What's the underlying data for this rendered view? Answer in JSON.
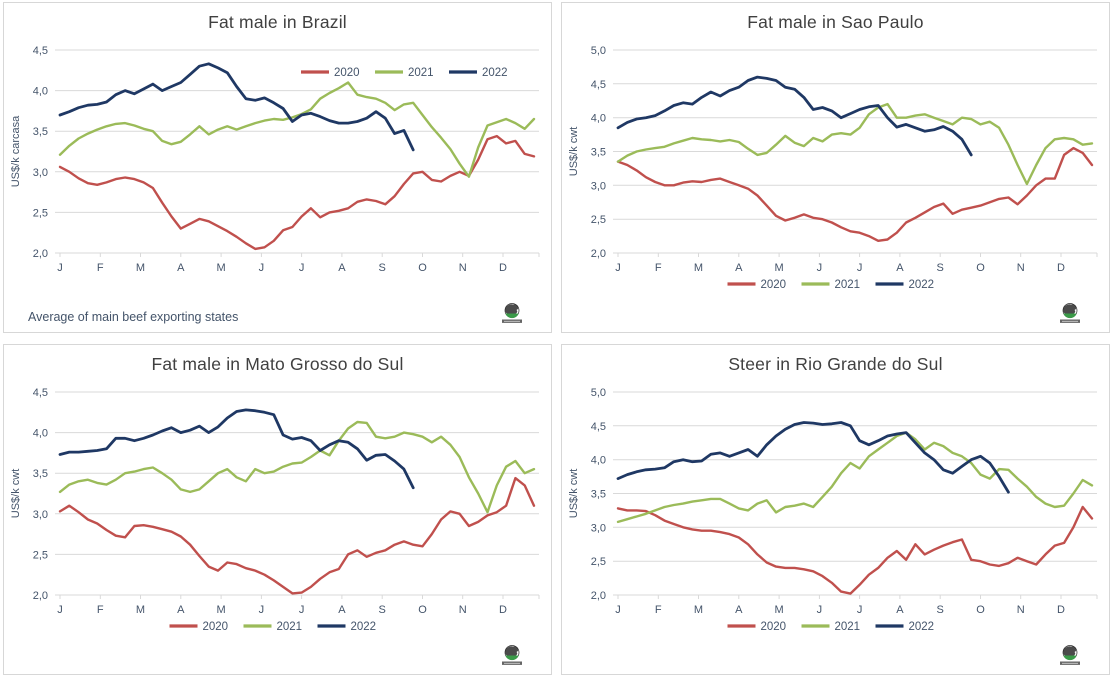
{
  "colors": {
    "red": "#c0504d",
    "green": "#9bbb59",
    "navy": "#1f3864",
    "grid": "#d9d9d9",
    "axis_text": "#44546a",
    "title_text": "#404040",
    "panel_border": "#d7d7d7",
    "logo_green": "#3a9a48",
    "logo_dark": "#2b2b2b",
    "logo_banner": "#666666"
  },
  "chart_data": [
    {
      "type": "line",
      "title": "Fat male in Brazil",
      "ylabel": "US$/k carcasa",
      "ylim": [
        2.0,
        4.5
      ],
      "ytick_labels": [
        "4,5",
        "4,0",
        "3,5",
        "3,0",
        "2,5",
        "2,0"
      ],
      "x_months": [
        "J",
        "F",
        "M",
        "A",
        "M",
        "J",
        "J",
        "A",
        "S",
        "O",
        "N",
        "D"
      ],
      "grid": true,
      "legend_position": "inside-top-right",
      "footnote": "Average  of main beef exporting states",
      "series": [
        {
          "name": "2020",
          "color": "#c0504d",
          "values": [
            3.06,
            3.0,
            2.92,
            2.86,
            2.84,
            2.87,
            2.91,
            2.93,
            2.91,
            2.87,
            2.8,
            2.62,
            2.45,
            2.3,
            2.36,
            2.42,
            2.39,
            2.33,
            2.27,
            2.2,
            2.12,
            2.05,
            2.07,
            2.15,
            2.28,
            2.32,
            2.45,
            2.55,
            2.44,
            2.5,
            2.52,
            2.55,
            2.63,
            2.66,
            2.64,
            2.6,
            2.7,
            2.85,
            2.98,
            3.0,
            2.9,
            2.88,
            2.95,
            3.0,
            2.95,
            3.15,
            3.4,
            3.44,
            3.35,
            3.38,
            3.22,
            3.19
          ]
        },
        {
          "name": "2021",
          "color": "#9bbb59",
          "values": [
            3.21,
            3.32,
            3.41,
            3.47,
            3.52,
            3.56,
            3.59,
            3.6,
            3.57,
            3.53,
            3.5,
            3.38,
            3.34,
            3.37,
            3.46,
            3.56,
            3.46,
            3.52,
            3.56,
            3.52,
            3.56,
            3.6,
            3.63,
            3.65,
            3.64,
            3.67,
            3.71,
            3.77,
            3.9,
            3.97,
            4.03,
            4.1,
            3.95,
            3.92,
            3.9,
            3.85,
            3.76,
            3.83,
            3.85,
            3.7,
            3.55,
            3.42,
            3.28,
            3.1,
            2.94,
            3.3,
            3.57,
            3.61,
            3.65,
            3.6,
            3.53,
            3.65
          ]
        },
        {
          "name": "2022",
          "color": "#1f3864",
          "values": [
            3.7,
            3.74,
            3.79,
            3.82,
            3.83,
            3.86,
            3.95,
            4.0,
            3.96,
            4.02,
            4.08,
            4.0,
            4.05,
            4.1,
            4.2,
            4.3,
            4.33,
            4.28,
            4.22,
            4.05,
            3.9,
            3.88,
            3.91,
            3.85,
            3.78,
            3.62,
            3.7,
            3.72,
            3.68,
            3.63,
            3.6,
            3.6,
            3.62,
            3.66,
            3.74,
            3.66,
            3.47,
            3.51,
            3.27
          ]
        }
      ]
    },
    {
      "type": "line",
      "title": "Fat male in Sao Paulo",
      "ylabel": "US$/k cwt",
      "ylim": [
        2.0,
        5.0
      ],
      "ytick_labels": [
        "5,0",
        "4,5",
        "4,0",
        "3,5",
        "3,0",
        "2,5",
        "2,0"
      ],
      "x_months": [
        "J",
        "F",
        "M",
        "A",
        "M",
        "J",
        "J",
        "A",
        "S",
        "O",
        "N",
        "D"
      ],
      "grid": true,
      "legend_position": "bottom",
      "footnote": "",
      "series": [
        {
          "name": "2020",
          "color": "#c0504d",
          "values": [
            3.35,
            3.3,
            3.22,
            3.12,
            3.05,
            3.0,
            3.0,
            3.04,
            3.06,
            3.05,
            3.08,
            3.1,
            3.05,
            3.0,
            2.95,
            2.85,
            2.7,
            2.55,
            2.48,
            2.52,
            2.57,
            2.52,
            2.5,
            2.45,
            2.38,
            2.32,
            2.3,
            2.25,
            2.18,
            2.2,
            2.3,
            2.45,
            2.52,
            2.6,
            2.68,
            2.73,
            2.58,
            2.64,
            2.67,
            2.7,
            2.75,
            2.8,
            2.82,
            2.72,
            2.85,
            3.0,
            3.1,
            3.1,
            3.45,
            3.55,
            3.48,
            3.3
          ]
        },
        {
          "name": "2021",
          "color": "#9bbb59",
          "values": [
            3.35,
            3.44,
            3.5,
            3.53,
            3.55,
            3.57,
            3.62,
            3.66,
            3.7,
            3.68,
            3.67,
            3.65,
            3.67,
            3.64,
            3.54,
            3.45,
            3.48,
            3.6,
            3.73,
            3.63,
            3.58,
            3.7,
            3.65,
            3.75,
            3.77,
            3.75,
            3.85,
            4.05,
            4.15,
            4.2,
            4.0,
            4.0,
            4.03,
            4.05,
            4.0,
            3.95,
            3.9,
            4.0,
            3.98,
            3.9,
            3.94,
            3.85,
            3.6,
            3.3,
            3.02,
            3.3,
            3.55,
            3.68,
            3.7,
            3.68,
            3.6,
            3.62
          ]
        },
        {
          "name": "2022",
          "color": "#1f3864",
          "values": [
            3.85,
            3.93,
            3.98,
            4.0,
            4.03,
            4.1,
            4.18,
            4.22,
            4.2,
            4.3,
            4.38,
            4.32,
            4.4,
            4.45,
            4.55,
            4.6,
            4.58,
            4.55,
            4.45,
            4.42,
            4.3,
            4.12,
            4.15,
            4.1,
            4.0,
            4.06,
            4.12,
            4.16,
            4.18,
            4.0,
            3.86,
            3.9,
            3.85,
            3.8,
            3.82,
            3.87,
            3.8,
            3.68,
            3.45
          ]
        }
      ]
    },
    {
      "type": "line",
      "title": "Fat male in Mato Grosso do Sul",
      "ylabel": "US$/k  cwt",
      "ylim": [
        2.0,
        4.5
      ],
      "ytick_labels": [
        "4,5",
        "4,0",
        "3,5",
        "3,0",
        "2,5",
        "2,0"
      ],
      "x_months": [
        "J",
        "F",
        "M",
        "A",
        "M",
        "J",
        "J",
        "A",
        "S",
        "O",
        "N",
        "D"
      ],
      "grid": true,
      "legend_position": "bottom",
      "footnote": "",
      "series": [
        {
          "name": "2020",
          "color": "#c0504d",
          "values": [
            3.03,
            3.1,
            3.02,
            2.93,
            2.88,
            2.8,
            2.73,
            2.71,
            2.85,
            2.86,
            2.84,
            2.81,
            2.78,
            2.72,
            2.62,
            2.48,
            2.35,
            2.3,
            2.4,
            2.38,
            2.33,
            2.3,
            2.25,
            2.18,
            2.1,
            2.02,
            2.03,
            2.1,
            2.2,
            2.28,
            2.32,
            2.5,
            2.55,
            2.47,
            2.52,
            2.55,
            2.62,
            2.66,
            2.62,
            2.6,
            2.75,
            2.93,
            3.03,
            3.0,
            2.85,
            2.9,
            2.98,
            3.02,
            3.1,
            3.44,
            3.35,
            3.1
          ]
        },
        {
          "name": "2021",
          "color": "#9bbb59",
          "values": [
            3.27,
            3.36,
            3.4,
            3.42,
            3.38,
            3.36,
            3.42,
            3.5,
            3.52,
            3.55,
            3.57,
            3.5,
            3.42,
            3.3,
            3.27,
            3.3,
            3.4,
            3.5,
            3.55,
            3.45,
            3.4,
            3.55,
            3.5,
            3.52,
            3.58,
            3.62,
            3.63,
            3.7,
            3.78,
            3.72,
            3.9,
            4.05,
            4.13,
            4.12,
            3.95,
            3.93,
            3.95,
            4.0,
            3.98,
            3.95,
            3.88,
            3.95,
            3.85,
            3.7,
            3.45,
            3.25,
            3.02,
            3.35,
            3.58,
            3.65,
            3.5,
            3.55
          ]
        },
        {
          "name": "2022",
          "color": "#1f3864",
          "values": [
            3.73,
            3.76,
            3.76,
            3.77,
            3.78,
            3.8,
            3.93,
            3.93,
            3.9,
            3.93,
            3.97,
            4.02,
            4.06,
            4.0,
            4.03,
            4.08,
            4.0,
            4.07,
            4.18,
            4.26,
            4.28,
            4.27,
            4.25,
            4.22,
            3.97,
            3.92,
            3.94,
            3.9,
            3.78,
            3.85,
            3.9,
            3.88,
            3.8,
            3.66,
            3.72,
            3.73,
            3.65,
            3.55,
            3.32
          ]
        }
      ]
    },
    {
      "type": "line",
      "title": "Steer  in Rio Grande do Sul",
      "ylabel": "US$/k  cwt",
      "ylim": [
        2.0,
        5.0
      ],
      "ytick_labels": [
        "5,0",
        "4,5",
        "4,0",
        "3,5",
        "3,0",
        "2,5",
        "2,0"
      ],
      "x_months": [
        "J",
        "F",
        "M",
        "A",
        "M",
        "J",
        "J",
        "A",
        "S",
        "O",
        "N",
        "D"
      ],
      "grid": true,
      "legend_position": "bottom",
      "footnote": "",
      "series": [
        {
          "name": "2020",
          "color": "#c0504d",
          "values": [
            3.28,
            3.25,
            3.25,
            3.24,
            3.18,
            3.1,
            3.05,
            3.0,
            2.97,
            2.95,
            2.95,
            2.93,
            2.9,
            2.85,
            2.75,
            2.6,
            2.48,
            2.42,
            2.4,
            2.4,
            2.38,
            2.35,
            2.28,
            2.18,
            2.05,
            2.02,
            2.15,
            2.3,
            2.4,
            2.55,
            2.65,
            2.52,
            2.75,
            2.6,
            2.67,
            2.73,
            2.78,
            2.82,
            2.52,
            2.5,
            2.45,
            2.43,
            2.47,
            2.55,
            2.5,
            2.45,
            2.6,
            2.73,
            2.77,
            3.0,
            3.3,
            3.13
          ]
        },
        {
          "name": "2021",
          "color": "#9bbb59",
          "values": [
            3.08,
            3.12,
            3.16,
            3.2,
            3.25,
            3.3,
            3.33,
            3.35,
            3.38,
            3.4,
            3.42,
            3.42,
            3.35,
            3.28,
            3.25,
            3.35,
            3.4,
            3.22,
            3.3,
            3.32,
            3.35,
            3.3,
            3.45,
            3.6,
            3.8,
            3.95,
            3.87,
            4.05,
            4.15,
            4.25,
            4.35,
            4.4,
            4.3,
            4.15,
            4.25,
            4.2,
            4.1,
            4.05,
            3.95,
            3.78,
            3.72,
            3.86,
            3.85,
            3.72,
            3.6,
            3.45,
            3.35,
            3.3,
            3.32,
            3.5,
            3.7,
            3.62
          ]
        },
        {
          "name": "2022",
          "color": "#1f3864",
          "values": [
            3.72,
            3.78,
            3.82,
            3.85,
            3.86,
            3.88,
            3.97,
            4.0,
            3.97,
            3.98,
            4.08,
            4.1,
            4.05,
            4.1,
            4.15,
            4.05,
            4.22,
            4.35,
            4.45,
            4.52,
            4.55,
            4.54,
            4.52,
            4.53,
            4.55,
            4.5,
            4.28,
            4.22,
            4.28,
            4.35,
            4.38,
            4.4,
            4.25,
            4.1,
            4.0,
            3.85,
            3.8,
            3.9,
            4.0,
            4.05,
            3.95,
            3.75,
            3.52
          ]
        }
      ]
    }
  ]
}
